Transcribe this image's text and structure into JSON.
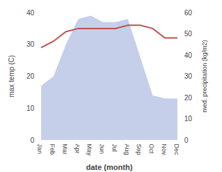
{
  "chart_data": {
    "type": "line",
    "xlabel": "date (month)",
    "ylabel": "max temp (C)",
    "y2label": "med. precipitation (kg/m2)",
    "categories": [
      "Jan",
      "Feb",
      "Mar",
      "Apr",
      "May",
      "Jun",
      "Jul",
      "Aug",
      "Sep",
      "Oct",
      "Nov",
      "Dec"
    ],
    "series": [
      {
        "type": "area",
        "color": "#c5cfea",
        "values": [
          17,
          20,
          30,
          38,
          39,
          37,
          37,
          38,
          26,
          14,
          13,
          13
        ]
      },
      {
        "type": "line",
        "color": "#c0504d",
        "values": [
          29,
          31,
          34,
          35,
          35,
          35,
          35,
          36,
          36,
          35,
          32,
          32
        ]
      }
    ],
    "ylim": [
      0,
      40
    ],
    "yticks": [
      0,
      10,
      20,
      30,
      40
    ],
    "y2lim": [
      0,
      60
    ],
    "y2ticks": [
      0,
      10,
      20,
      30,
      40,
      50,
      60
    ],
    "grid": false
  }
}
